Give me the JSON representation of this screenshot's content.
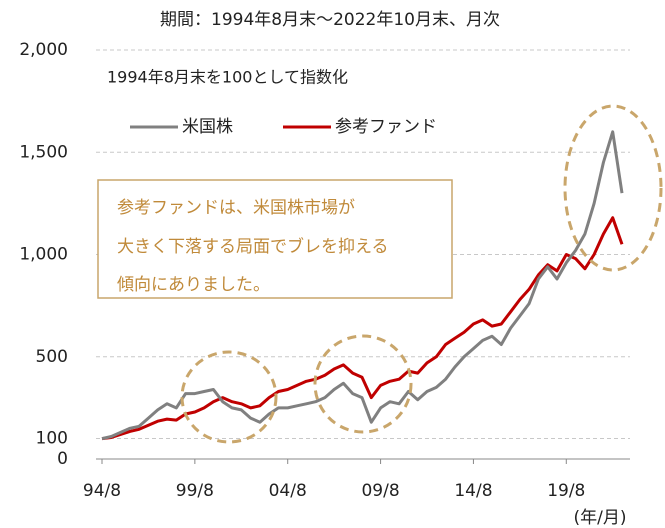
{
  "chart_data": {
    "type": "line",
    "title": "期間：1994年8月末～2022年10月末、月次",
    "subtitle": "1994年8月末を100として指数化",
    "x_label": "(年/月)",
    "annotation": [
      "参考ファンドは、米国株市場が",
      "大きく下落する局面でブレを抑える",
      "傾向にありました。"
    ],
    "categories": [
      "94/8",
      null,
      null,
      null,
      null,
      null,
      null,
      null,
      null,
      null,
      "99/8",
      null,
      null,
      null,
      null,
      null,
      null,
      null,
      null,
      null,
      "04/8",
      null,
      null,
      null,
      null,
      null,
      null,
      null,
      null,
      null,
      "09/8",
      null,
      null,
      null,
      null,
      null,
      null,
      null,
      null,
      null,
      "14/8",
      null,
      null,
      null,
      null,
      null,
      null,
      null,
      null,
      null,
      "19/8",
      null,
      null,
      null,
      null,
      null,
      null
    ],
    "series": [
      {
        "name": "米国株",
        "color": "#808080",
        "values": [
          100,
          110,
          130,
          150,
          160,
          200,
          240,
          270,
          250,
          320,
          320,
          330,
          340,
          280,
          250,
          240,
          200,
          180,
          220,
          250,
          250,
          260,
          270,
          280,
          300,
          340,
          370,
          320,
          300,
          180,
          250,
          280,
          270,
          330,
          290,
          330,
          350,
          390,
          450,
          500,
          540,
          580,
          600,
          560,
          640,
          700,
          760,
          880,
          940,
          880,
          960,
          1020,
          1100,
          1250,
          1450,
          1600,
          1300
        ]
      },
      {
        "name": "参考ファンド",
        "color": "#c00000",
        "values": [
          100,
          105,
          120,
          135,
          145,
          165,
          185,
          195,
          190,
          220,
          230,
          250,
          280,
          300,
          280,
          270,
          250,
          260,
          300,
          330,
          340,
          360,
          380,
          390,
          410,
          440,
          460,
          420,
          400,
          300,
          360,
          380,
          390,
          430,
          420,
          470,
          500,
          560,
          590,
          620,
          660,
          680,
          650,
          660,
          720,
          780,
          830,
          900,
          950,
          920,
          1000,
          980,
          930,
          1000,
          1100,
          1180,
          1050
        ]
      }
    ],
    "ylim": [
      0,
      2000
    ],
    "yticks": [
      0,
      100,
      500,
      {
        "value": 1000,
        "label": "1,000"
      },
      {
        "value": 1500,
        "label": "1,500"
      },
      {
        "value": 2000,
        "label": "2,000"
      }
    ],
    "grid": true,
    "legend": "top"
  }
}
